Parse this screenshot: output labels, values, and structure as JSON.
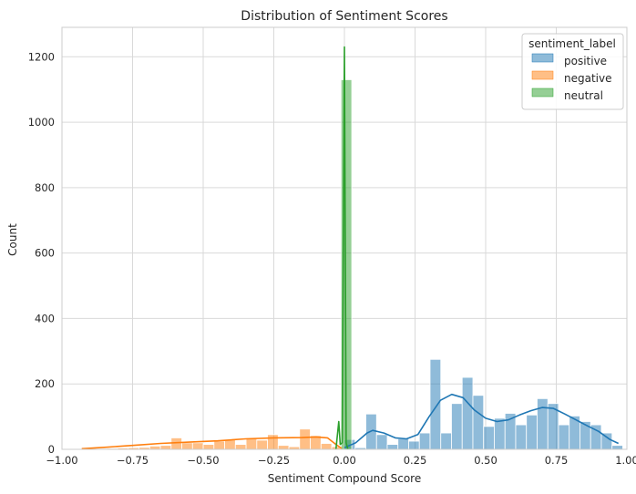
{
  "chart_data": {
    "type": "bar",
    "subtype": "histogram-with-kde",
    "title": "Distribution of Sentiment Scores",
    "xlabel": "Sentiment Compound Score",
    "ylabel": "Count",
    "xlim": [
      -1.0,
      1.0
    ],
    "ylim": [
      0,
      1290
    ],
    "xticks": [
      -1.0,
      -0.75,
      -0.5,
      -0.25,
      0.0,
      0.25,
      0.5,
      0.75,
      1.0
    ],
    "xtick_labels": [
      "−1.00",
      "−0.75",
      "−0.50",
      "−0.25",
      "0.00",
      "0.25",
      "0.50",
      "0.75",
      "1.00"
    ],
    "yticks": [
      0,
      200,
      400,
      600,
      800,
      1000,
      1200
    ],
    "ytick_labels": [
      "0",
      "200",
      "400",
      "600",
      "800",
      "1000",
      "1200"
    ],
    "grid": true,
    "legend": {
      "title": "sentiment_label",
      "placement": "top-right"
    },
    "bin_width": 0.0379,
    "series": [
      {
        "name": "positive",
        "color": "#1f77b4",
        "bins": [
          [
            0.0,
            30
          ],
          [
            0.0379,
            5
          ],
          [
            0.0758,
            108
          ],
          [
            0.1137,
            45
          ],
          [
            0.1516,
            15
          ],
          [
            0.1895,
            32
          ],
          [
            0.2274,
            25
          ],
          [
            0.2653,
            50
          ],
          [
            0.3032,
            275
          ],
          [
            0.3411,
            50
          ],
          [
            0.379,
            140
          ],
          [
            0.4169,
            220
          ],
          [
            0.4548,
            165
          ],
          [
            0.4927,
            70
          ],
          [
            0.5306,
            95
          ],
          [
            0.5685,
            110
          ],
          [
            0.6064,
            75
          ],
          [
            0.6443,
            105
          ],
          [
            0.6822,
            155
          ],
          [
            0.7201,
            140
          ],
          [
            0.758,
            75
          ],
          [
            0.7959,
            102
          ],
          [
            0.8338,
            85
          ],
          [
            0.8717,
            75
          ],
          [
            0.9096,
            50
          ],
          [
            0.9475,
            12
          ]
        ],
        "kde": [
          [
            0.0,
            5
          ],
          [
            0.04,
            20
          ],
          [
            0.08,
            50
          ],
          [
            0.1,
            58
          ],
          [
            0.14,
            50
          ],
          [
            0.18,
            35
          ],
          [
            0.22,
            32
          ],
          [
            0.26,
            45
          ],
          [
            0.3,
            100
          ],
          [
            0.34,
            150
          ],
          [
            0.38,
            168
          ],
          [
            0.42,
            158
          ],
          [
            0.46,
            120
          ],
          [
            0.5,
            95
          ],
          [
            0.54,
            85
          ],
          [
            0.58,
            90
          ],
          [
            0.62,
            105
          ],
          [
            0.66,
            118
          ],
          [
            0.7,
            128
          ],
          [
            0.74,
            125
          ],
          [
            0.78,
            108
          ],
          [
            0.82,
            90
          ],
          [
            0.86,
            72
          ],
          [
            0.9,
            55
          ],
          [
            0.94,
            30
          ],
          [
            0.97,
            18
          ]
        ]
      },
      {
        "name": "negative",
        "color": "#ff7f0e",
        "bins": [
          [
            -0.9546,
            2
          ],
          [
            -0.9167,
            3
          ],
          [
            -0.8788,
            2
          ],
          [
            -0.8409,
            3
          ],
          [
            -0.803,
            4
          ],
          [
            -0.7651,
            5
          ],
          [
            -0.7272,
            6
          ],
          [
            -0.6893,
            10
          ],
          [
            -0.6514,
            12
          ],
          [
            -0.6135,
            35
          ],
          [
            -0.5756,
            20
          ],
          [
            -0.5377,
            20
          ],
          [
            -0.4998,
            15
          ],
          [
            -0.4619,
            25
          ],
          [
            -0.424,
            30
          ],
          [
            -0.3861,
            15
          ],
          [
            -0.3482,
            35
          ],
          [
            -0.3103,
            28
          ],
          [
            -0.2724,
            45
          ],
          [
            -0.2345,
            12
          ],
          [
            -0.1966,
            8
          ],
          [
            -0.1587,
            62
          ],
          [
            -0.1208,
            42
          ],
          [
            -0.0829,
            18
          ],
          [
            -0.045,
            8
          ]
        ],
        "kde": [
          [
            -0.93,
            2
          ],
          [
            -0.85,
            6
          ],
          [
            -0.75,
            12
          ],
          [
            -0.65,
            18
          ],
          [
            -0.55,
            22
          ],
          [
            -0.45,
            26
          ],
          [
            -0.35,
            32
          ],
          [
            -0.25,
            35
          ],
          [
            -0.15,
            36
          ],
          [
            -0.1,
            38
          ],
          [
            -0.06,
            35
          ],
          [
            -0.03,
            15
          ],
          [
            -0.01,
            3
          ]
        ]
      },
      {
        "name": "neutral",
        "color": "#2ca02c",
        "bins": [
          [
            -0.012,
            1130
          ]
        ],
        "kde": [
          [
            -0.03,
            0
          ],
          [
            -0.02,
            85
          ],
          [
            -0.015,
            15
          ],
          [
            -0.008,
            20
          ],
          [
            0.0,
            1230
          ],
          [
            0.006,
            20
          ],
          [
            0.012,
            0
          ]
        ]
      }
    ]
  }
}
